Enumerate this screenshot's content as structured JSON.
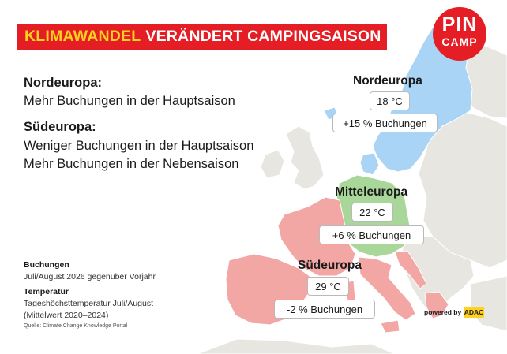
{
  "banner": {
    "title_highlight": "KLIMAWANDEL",
    "title_rest": "VERÄNDERT CAMPINGSAISON"
  },
  "logo": {
    "line1": "PIN",
    "line2": "CAMP"
  },
  "summary": {
    "north_heading": "Nordeuropa:",
    "north_line": "Mehr Buchungen in der Hauptsaison",
    "south_heading": "Südeuropa:",
    "south_line1": "Weniger Buchungen in der Hauptsaison",
    "south_line2": "Mehr Buchungen in der Nebensaison"
  },
  "legend": {
    "bookings_heading": "Buchungen",
    "bookings_text": "Juli/August 2026 gegenüber Vorjahr",
    "temp_heading": "Temperatur",
    "temp_text1": "Tageshöchsttemperatur Juli/August",
    "temp_text2": "(Mittelwert 2020–2024)",
    "source": "Quelle: Climate Change Knowledge Portal"
  },
  "regions": {
    "north": {
      "name": "Nordeuropa",
      "temp": "18 °C",
      "bookings": "+15 % Buchungen",
      "color": "#a9d4f5"
    },
    "central": {
      "name": "Mitteleuropa",
      "temp": "22 °C",
      "bookings": "+6 % Buchungen",
      "color": "#a9d79a"
    },
    "south": {
      "name": "Südeuropa",
      "temp": "29 °C",
      "bookings": "-2 % Buchungen",
      "color": "#f2a7a5"
    }
  },
  "land_color": "#e8e6e0",
  "footer": {
    "powered_by": "powered by",
    "partner": "ADAC"
  }
}
